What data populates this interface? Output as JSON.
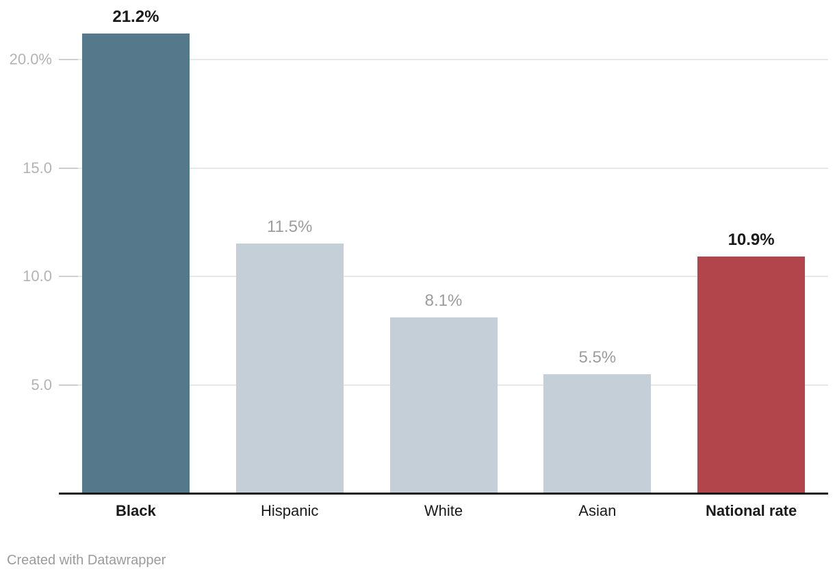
{
  "chart_data": {
    "type": "bar",
    "categories": [
      "Black",
      "Hispanic",
      "White",
      "Asian",
      "National rate"
    ],
    "values": [
      21.2,
      11.5,
      8.1,
      5.5,
      10.9
    ],
    "value_labels": [
      "21.2%",
      "11.5%",
      "8.1%",
      "5.5%",
      "10.9%"
    ],
    "emphasized": [
      true,
      false,
      false,
      false,
      true
    ],
    "bar_colors": [
      "#55788b",
      "#c4cfd8",
      "#c4cfd8",
      "#c4cfd8",
      "#b2454c"
    ],
    "title": "",
    "xlabel": "",
    "ylabel": "",
    "ylim": [
      0,
      22.7
    ],
    "yticks": [
      {
        "value": 5,
        "label": "5.0"
      },
      {
        "value": 10,
        "label": "10.0"
      },
      {
        "value": 15,
        "label": "15.0"
      },
      {
        "value": 20,
        "label": "20.0%"
      }
    ],
    "grid": "horizontal",
    "legend": "none"
  },
  "colors": {
    "background": "#ffffff",
    "bar_highlight_dark": "#55788b",
    "bar_muted": "#c4cfd8",
    "bar_highlight_red": "#b2454c",
    "gridline": "#e8e8e8",
    "tick_dash": "#cfcfcf",
    "axis_line": "#18181a",
    "ytick_label": "#b3b3b3",
    "value_label_muted": "#9c9c9c",
    "value_label_emphasis": "#1a1a1a",
    "category_label": "#1a1a1a",
    "footer_text": "#9b9b9b"
  },
  "footer": {
    "credit": "Created with Datawrapper"
  }
}
